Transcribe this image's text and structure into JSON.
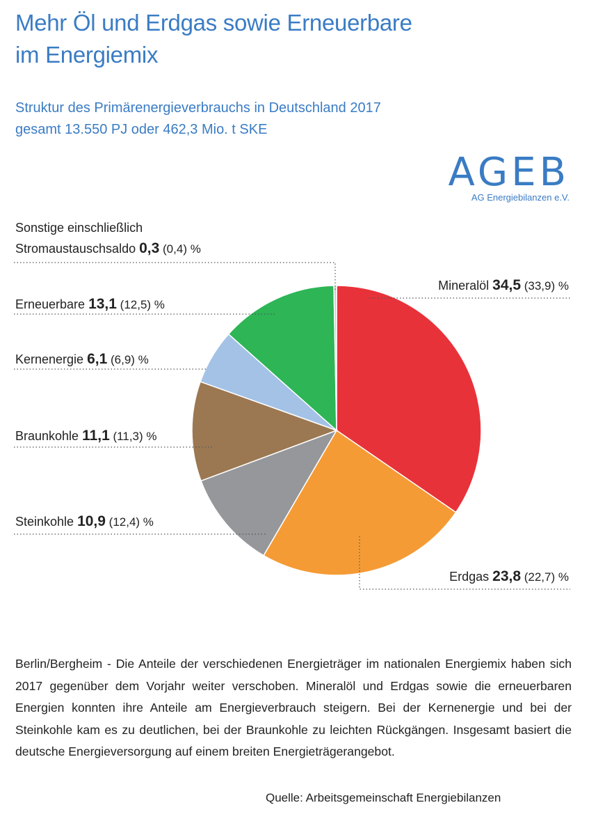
{
  "header": {
    "title_line1": "Mehr Öl und Erdgas sowie Erneuerbare",
    "title_line2": "im Energiemix",
    "subtitle_line1": "Struktur des Primärenergieverbrauchs in Deutschland 2017",
    "subtitle_line2": "gesamt 13.550 PJ oder 462,3 Mio. t SKE"
  },
  "logo": {
    "name": "AGEB",
    "tagline": "AG Energiebilanzen e.V."
  },
  "chart_data": {
    "type": "pie",
    "unit": "%",
    "title": "Struktur des Primärenergieverbrauchs in Deutschland 2017",
    "slices": [
      {
        "label": "Mineralöl",
        "value": 34.5,
        "value_text": "34,5",
        "previous_text": "(33,9)",
        "color": "#e8323a"
      },
      {
        "label": "Erdgas",
        "value": 23.8,
        "value_text": "23,8",
        "previous_text": "(22,7)",
        "color": "#f59b35"
      },
      {
        "label": "Steinkohle",
        "value": 10.9,
        "value_text": "10,9",
        "previous_text": "(12,4)",
        "color": "#96979b"
      },
      {
        "label": "Braunkohle",
        "value": 11.1,
        "value_text": "11,1",
        "previous_text": "(11,3)",
        "color": "#9b7852"
      },
      {
        "label": "Kernenergie",
        "value": 6.1,
        "value_text": "6,1",
        "previous_text": "(6,9)",
        "color": "#a4c2e6"
      },
      {
        "label": "Erneuerbare",
        "value": 13.1,
        "value_text": "13,1",
        "previous_text": "(12,5)",
        "color": "#2db556"
      },
      {
        "label_line1": "Sonstige einschließlich",
        "label": "Stromaustauschsaldo",
        "value": 0.3,
        "value_text": "0,3",
        "previous_text": "(0,4)",
        "color": "#c9ccd1"
      }
    ]
  },
  "body_text": "Berlin/Bergheim - Die Anteile der verschiedenen Energieträger im nationalen Energiemix haben sich 2017 gegenüber dem Vorjahr weiter verschoben. Mineralöl und Erdgas sowie die erneuerbaren Energien konnten ihre Anteile am Energieverbrauch steigern. Bei der Kernenergie und bei der Steinkohle kam es zu deutlichen, bei der Braunkohle zu leichten Rückgängen. Insgesamt basiert die deutsche Energieversorgung auf einem breiten Energieträgerangebot.",
  "source": "Quelle: Arbeitsgemeinschaft Energiebilanzen"
}
